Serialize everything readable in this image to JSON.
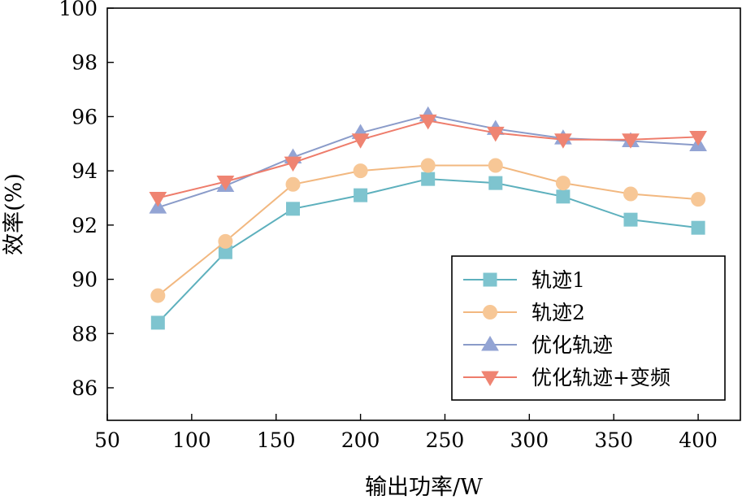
{
  "chart_data": {
    "type": "line",
    "xlabel": "输出功率/W",
    "ylabel": "效率(%)",
    "xlim": [
      50,
      425
    ],
    "ylim": [
      84.8,
      100
    ],
    "xticks": [
      50,
      100,
      150,
      200,
      250,
      300,
      350,
      400
    ],
    "yticks": [
      86,
      88,
      90,
      92,
      94,
      96,
      98,
      100
    ],
    "grid": false,
    "legend_position": "bottom-right",
    "x": [
      80,
      120,
      160,
      200,
      240,
      280,
      320,
      360,
      400
    ],
    "series": [
      {
        "name": "轨迹1",
        "marker": "square",
        "color": "#5db0bd",
        "marker_color": "#7ec4cf",
        "values": [
          88.4,
          91.0,
          92.6,
          93.1,
          93.7,
          93.55,
          93.05,
          92.2,
          91.9
        ]
      },
      {
        "name": "轨迹2",
        "marker": "circle",
        "color": "#f2b880",
        "marker_color": "#f7c796",
        "values": [
          89.4,
          91.4,
          93.5,
          94.0,
          94.2,
          94.2,
          93.55,
          93.15,
          92.95
        ]
      },
      {
        "name": "优化轨迹",
        "marker": "triangle-up",
        "color": "#8a9bc9",
        "marker_color": "#93a4d4",
        "values": [
          92.65,
          93.45,
          94.5,
          95.4,
          96.05,
          95.55,
          95.2,
          95.1,
          94.95
        ]
      },
      {
        "name": "优化轨迹+变频",
        "marker": "triangle-down",
        "color": "#ee7c6b",
        "marker_color": "#ef8472",
        "values": [
          93.0,
          93.6,
          94.3,
          95.15,
          95.85,
          95.4,
          95.15,
          95.15,
          95.25
        ]
      }
    ]
  }
}
